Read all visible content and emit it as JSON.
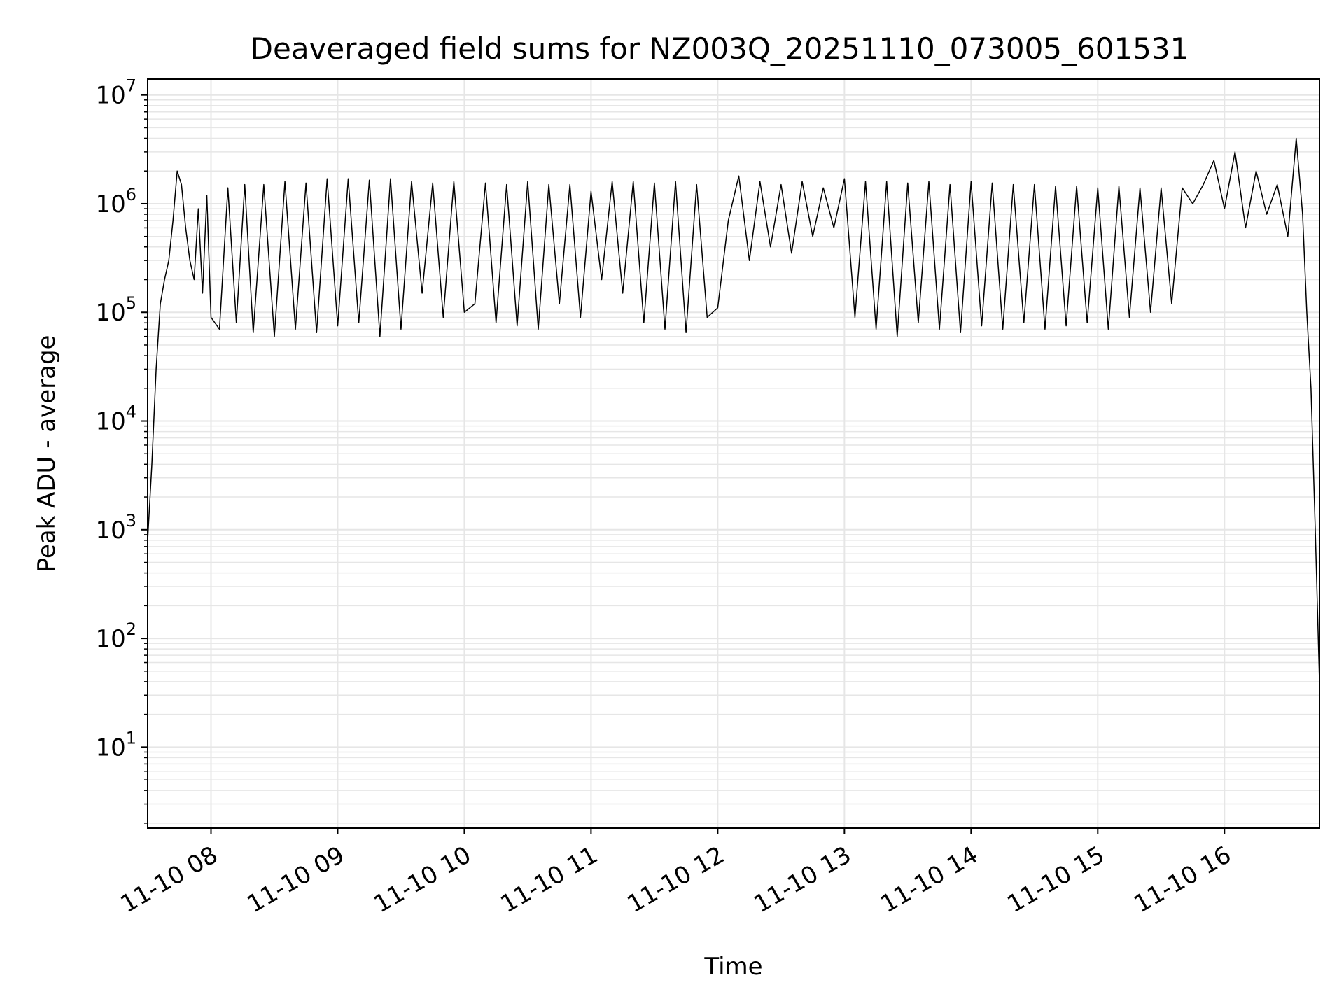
{
  "chart_data": {
    "type": "line",
    "title": "Deaveraged field sums for NZ003Q_20251110_073005_601531",
    "xlabel": "Time",
    "ylabel": "Peak ADU - average",
    "yscale": "log",
    "ylim": [
      1.8,
      14000000
    ],
    "xlim": [
      "2025-11-10T07:30:00",
      "2025-11-10T16:45:00"
    ],
    "grid": true,
    "line_color": "#000000",
    "grid_color": "#e6e6e6",
    "x_ticks": [
      {
        "value": "2025-11-10T08:00:00",
        "label": "11-10 08"
      },
      {
        "value": "2025-11-10T09:00:00",
        "label": "11-10 09"
      },
      {
        "value": "2025-11-10T10:00:00",
        "label": "11-10 10"
      },
      {
        "value": "2025-11-10T11:00:00",
        "label": "11-10 11"
      },
      {
        "value": "2025-11-10T12:00:00",
        "label": "11-10 12"
      },
      {
        "value": "2025-11-10T13:00:00",
        "label": "11-10 13"
      },
      {
        "value": "2025-11-10T14:00:00",
        "label": "11-10 14"
      },
      {
        "value": "2025-11-10T15:00:00",
        "label": "11-10 15"
      },
      {
        "value": "2025-11-10T16:00:00",
        "label": "11-10 16"
      }
    ],
    "y_ticks": [
      {
        "value": 10,
        "base": "10",
        "exp": "1"
      },
      {
        "value": 100,
        "base": "10",
        "exp": "2"
      },
      {
        "value": 1000,
        "base": "10",
        "exp": "3"
      },
      {
        "value": 10000,
        "base": "10",
        "exp": "4"
      },
      {
        "value": 100000,
        "base": "10",
        "exp": "5"
      },
      {
        "value": 1000000,
        "base": "10",
        "exp": "6"
      },
      {
        "value": 10000000,
        "base": "10",
        "exp": "7"
      }
    ],
    "series": [
      {
        "x": [
          "2025-11-10T07:30:00",
          "2025-11-10T07:32:00",
          "2025-11-10T07:34:00",
          "2025-11-10T07:36:00",
          "2025-11-10T07:38:00",
          "2025-11-10T07:40:00",
          "2025-11-10T07:42:00",
          "2025-11-10T07:44:00",
          "2025-11-10T07:46:00",
          "2025-11-10T07:48:00",
          "2025-11-10T07:50:00",
          "2025-11-10T07:52:00",
          "2025-11-10T07:54:00",
          "2025-11-10T07:56:00",
          "2025-11-10T07:58:00",
          "2025-11-10T08:00:00",
          "2025-11-10T08:04:00",
          "2025-11-10T08:08:00",
          "2025-11-10T08:12:00",
          "2025-11-10T08:16:00",
          "2025-11-10T08:20:00",
          "2025-11-10T08:25:00",
          "2025-11-10T08:30:00",
          "2025-11-10T08:35:00",
          "2025-11-10T08:40:00",
          "2025-11-10T08:45:00",
          "2025-11-10T08:50:00",
          "2025-11-10T08:55:00",
          "2025-11-10T09:00:00",
          "2025-11-10T09:05:00",
          "2025-11-10T09:10:00",
          "2025-11-10T09:15:00",
          "2025-11-10T09:20:00",
          "2025-11-10T09:25:00",
          "2025-11-10T09:30:00",
          "2025-11-10T09:35:00",
          "2025-11-10T09:40:00",
          "2025-11-10T09:45:00",
          "2025-11-10T09:50:00",
          "2025-11-10T09:55:00",
          "2025-11-10T10:00:00",
          "2025-11-10T10:05:00",
          "2025-11-10T10:10:00",
          "2025-11-10T10:15:00",
          "2025-11-10T10:20:00",
          "2025-11-10T10:25:00",
          "2025-11-10T10:30:00",
          "2025-11-10T10:35:00",
          "2025-11-10T10:40:00",
          "2025-11-10T10:45:00",
          "2025-11-10T10:50:00",
          "2025-11-10T10:55:00",
          "2025-11-10T11:00:00",
          "2025-11-10T11:05:00",
          "2025-11-10T11:10:00",
          "2025-11-10T11:15:00",
          "2025-11-10T11:20:00",
          "2025-11-10T11:25:00",
          "2025-11-10T11:30:00",
          "2025-11-10T11:35:00",
          "2025-11-10T11:40:00",
          "2025-11-10T11:45:00",
          "2025-11-10T11:50:00",
          "2025-11-10T11:55:00",
          "2025-11-10T12:00:00",
          "2025-11-10T12:05:00",
          "2025-11-10T12:10:00",
          "2025-11-10T12:15:00",
          "2025-11-10T12:20:00",
          "2025-11-10T12:25:00",
          "2025-11-10T12:30:00",
          "2025-11-10T12:35:00",
          "2025-11-10T12:40:00",
          "2025-11-10T12:45:00",
          "2025-11-10T12:50:00",
          "2025-11-10T12:55:00",
          "2025-11-10T13:00:00",
          "2025-11-10T13:05:00",
          "2025-11-10T13:10:00",
          "2025-11-10T13:15:00",
          "2025-11-10T13:20:00",
          "2025-11-10T13:25:00",
          "2025-11-10T13:30:00",
          "2025-11-10T13:35:00",
          "2025-11-10T13:40:00",
          "2025-11-10T13:45:00",
          "2025-11-10T13:50:00",
          "2025-11-10T13:55:00",
          "2025-11-10T14:00:00",
          "2025-11-10T14:05:00",
          "2025-11-10T14:10:00",
          "2025-11-10T14:15:00",
          "2025-11-10T14:20:00",
          "2025-11-10T14:25:00",
          "2025-11-10T14:30:00",
          "2025-11-10T14:35:00",
          "2025-11-10T14:40:00",
          "2025-11-10T14:45:00",
          "2025-11-10T14:50:00",
          "2025-11-10T14:55:00",
          "2025-11-10T15:00:00",
          "2025-11-10T15:05:00",
          "2025-11-10T15:10:00",
          "2025-11-10T15:15:00",
          "2025-11-10T15:20:00",
          "2025-11-10T15:25:00",
          "2025-11-10T15:30:00",
          "2025-11-10T15:35:00",
          "2025-11-10T15:40:00",
          "2025-11-10T15:45:00",
          "2025-11-10T15:50:00",
          "2025-11-10T15:55:00",
          "2025-11-10T16:00:00",
          "2025-11-10T16:05:00",
          "2025-11-10T16:10:00",
          "2025-11-10T16:15:00",
          "2025-11-10T16:20:00",
          "2025-11-10T16:25:00",
          "2025-11-10T16:30:00",
          "2025-11-10T16:34:00",
          "2025-11-10T16:37:00",
          "2025-11-10T16:39:00",
          "2025-11-10T16:41:00",
          "2025-11-10T16:43:00",
          "2025-11-10T16:45:00"
        ],
        "y": [
          800,
          4000,
          30000,
          120000,
          200000,
          300000,
          700000,
          2000000,
          1500000,
          600000,
          300000,
          200000,
          900000,
          150000,
          1200000,
          90000,
          70000,
          1400000,
          80000,
          1500000,
          65000,
          1500000,
          60000,
          1600000,
          70000,
          1550000,
          65000,
          1700000,
          75000,
          1700000,
          80000,
          1650000,
          60000,
          1700000,
          70000,
          1600000,
          150000,
          1550000,
          90000,
          1600000,
          100000,
          120000,
          1550000,
          80000,
          1500000,
          75000,
          1600000,
          70000,
          1500000,
          120000,
          1500000,
          90000,
          1300000,
          200000,
          1600000,
          150000,
          1600000,
          80000,
          1550000,
          70000,
          1600000,
          65000,
          1500000,
          90000,
          110000,
          700000,
          1800000,
          300000,
          1600000,
          400000,
          1500000,
          350000,
          1600000,
          500000,
          1400000,
          600000,
          1700000,
          90000,
          1600000,
          70000,
          1600000,
          60000,
          1550000,
          80000,
          1600000,
          70000,
          1500000,
          65000,
          1600000,
          75000,
          1550000,
          70000,
          1500000,
          80000,
          1500000,
          70000,
          1450000,
          75000,
          1450000,
          80000,
          1400000,
          70000,
          1450000,
          90000,
          1400000,
          100000,
          1400000,
          120000,
          1400000,
          1000000,
          1500000,
          2500000,
          900000,
          3000000,
          600000,
          2000000,
          800000,
          1500000,
          500000,
          4000000,
          800000,
          100000,
          20000,
          1000,
          40
        ]
      }
    ]
  }
}
